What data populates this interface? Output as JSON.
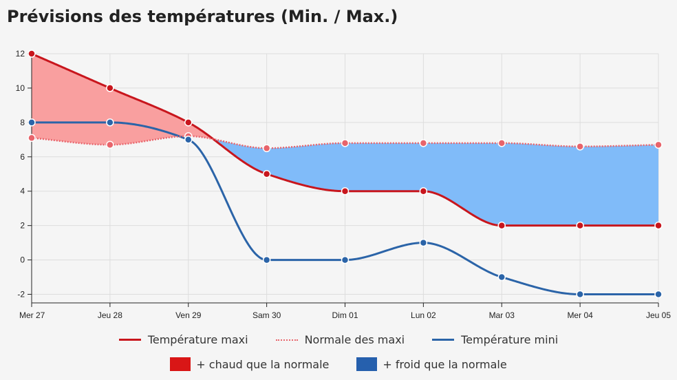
{
  "title": "Prévisions des températures (Min. / Max.)",
  "colors": {
    "max": "#c8161d",
    "normal": "#e8646b",
    "min": "#2b64a8",
    "warm_fill": "#f99f9f",
    "cold_fill": "#80bbf9",
    "warm_box": "#d91616",
    "cold_box": "#2660ad",
    "grid": "#dddddd",
    "axis": "#222222"
  },
  "legend": {
    "max_label": "Température maxi",
    "normal_label": "Normale des maxi",
    "min_label": "Température mini",
    "warm_label": "+ chaud que la normale",
    "cold_label": "+ froid que la normale"
  },
  "chart_data": {
    "type": "line",
    "categories": [
      "Mer 27",
      "Jeu 28",
      "Ven 29",
      "Sam 30",
      "Dim 01",
      "Lun 02",
      "Mar 03",
      "Mer 04",
      "Jeu 05"
    ],
    "ylim": [
      -2.5,
      12
    ],
    "yticks": [
      -2,
      0,
      2,
      4,
      6,
      8,
      10,
      12
    ],
    "grid": true,
    "legend_position": "bottom",
    "series": [
      {
        "name": "Température maxi",
        "values": [
          12,
          10,
          8,
          5,
          4,
          4,
          2,
          2,
          2
        ]
      },
      {
        "name": "Normale des maxi",
        "values": [
          7.1,
          6.7,
          7.2,
          6.5,
          6.8,
          6.8,
          6.8,
          6.6,
          6.7
        ]
      },
      {
        "name": "Température mini",
        "values": [
          8,
          8,
          7,
          0,
          0,
          1,
          -1,
          -2,
          -2
        ]
      }
    ]
  }
}
